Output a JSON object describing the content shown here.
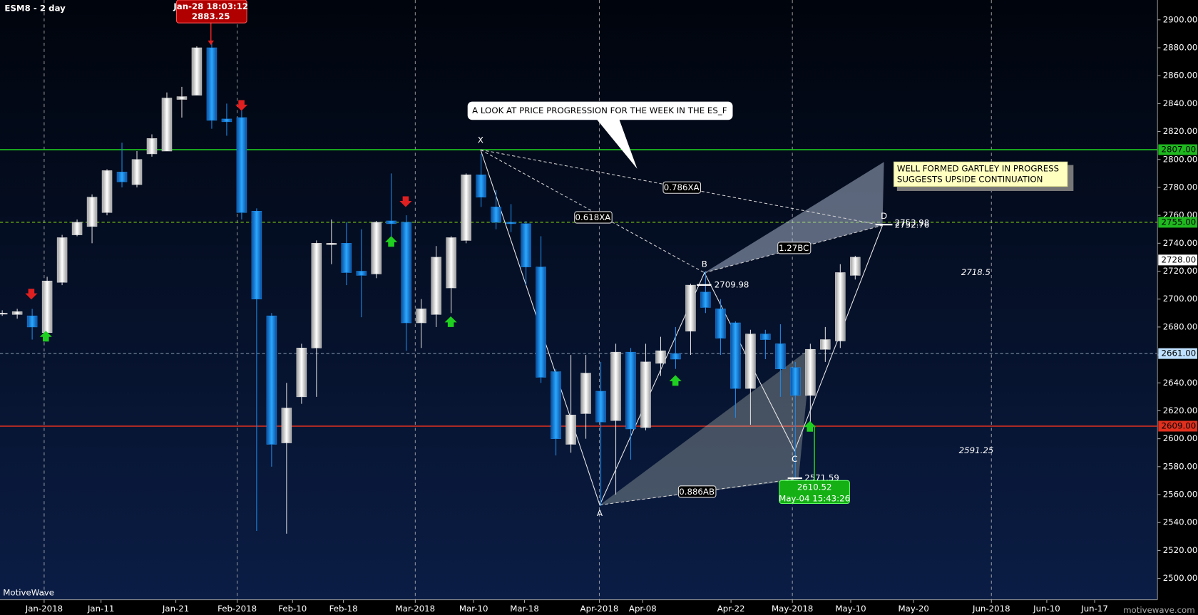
{
  "chart_data": {
    "type": "candlestick",
    "title": "ESM8 - 2 day",
    "open": [
      2690,
      2689,
      2688,
      2676,
      2712,
      2746,
      2752,
      2762,
      2791,
      2782,
      2804,
      2806,
      2843,
      2846,
      2880,
      2829,
      2830,
      2763,
      2688,
      2597,
      2630,
      2665,
      2739,
      2740,
      2720,
      2718,
      2756,
      2755,
      2683,
      2689,
      2708,
      2742,
      2789,
      2766,
      2755,
      2754,
      2723,
      2648,
      2596,
      2618,
      2634,
      2613,
      2662,
      2608,
      2654,
      2661,
      2677,
      2705,
      2693,
      2683,
      2636,
      2675,
      2668,
      2651,
      2631,
      2664,
      2670,
      2717
    ],
    "high": [
      2692,
      2693,
      2693,
      2716,
      2746,
      2757,
      2775,
      2793,
      2812,
      2806,
      2818,
      2848,
      2852,
      2881,
      2883.25,
      2840,
      2835,
      2765,
      2690,
      2640,
      2668,
      2742,
      2757,
      2755,
      2750,
      2756,
      2790,
      2760,
      2700,
      2738,
      2745,
      2790,
      2804,
      2778,
      2768,
      2756,
      2745,
      2650,
      2660,
      2660,
      2655,
      2668,
      2665,
      2668,
      2673,
      2680,
      2711,
      2720,
      2700,
      2684,
      2678,
      2678,
      2682,
      2655,
      2668,
      2680,
      2725,
      2731
    ],
    "low": [
      2688,
      2686,
      2671,
      2672,
      2710,
      2745,
      2740,
      2760,
      2780,
      2780,
      2802,
      2806,
      2830,
      2846,
      2822,
      2817,
      2757,
      2534,
      2580,
      2532,
      2625,
      2630,
      2725,
      2710,
      2687,
      2715,
      2745,
      2663,
      2665,
      2680,
      2690,
      2740,
      2766,
      2750,
      2748,
      2710,
      2640,
      2588,
      2590,
      2600,
      2552,
      2560,
      2585,
      2606,
      2645,
      2650,
      2660,
      2690,
      2660,
      2615,
      2610,
      2657,
      2630,
      2571.59,
      2610,
      2655,
      2665,
      2714
    ],
    "close": [
      2690,
      2691,
      2680,
      2713,
      2744,
      2755,
      2773,
      2792,
      2784,
      2800,
      2815,
      2844,
      2845,
      2880,
      2828,
      2827,
      2762,
      2700,
      2596,
      2622,
      2665,
      2740,
      2740,
      2719,
      2717,
      2755,
      2754,
      2683,
      2693,
      2730,
      2744,
      2789,
      2773,
      2755,
      2754,
      2723,
      2644,
      2600,
      2617,
      2647,
      2612,
      2662,
      2607,
      2655,
      2663,
      2657,
      2710,
      2694,
      2672,
      2636,
      2675,
      2671,
      2650,
      2631,
      2664,
      2671,
      2719,
      2730
    ],
    "up_color": "#d9d9d9",
    "down_color": "#1e88e5",
    "ylim": [
      2484.7,
      2914.2
    ],
    "yticks": [
      {
        "value": 2500,
        "label": "2500.00"
      },
      {
        "value": 2520,
        "label": "2520.00"
      },
      {
        "value": 2540,
        "label": "2540.00"
      },
      {
        "value": 2560,
        "label": "2560.00"
      },
      {
        "value": 2580,
        "label": "2580.00"
      },
      {
        "value": 2600,
        "label": "2600.00"
      },
      {
        "value": 2620,
        "label": "2620.00"
      },
      {
        "value": 2640,
        "label": "2640.00"
      },
      {
        "value": 2660,
        "label": "2660.00"
      },
      {
        "value": 2680,
        "label": "2680.00"
      },
      {
        "value": 2700,
        "label": "2700.00"
      },
      {
        "value": 2720,
        "label": "2720.00"
      },
      {
        "value": 2740,
        "label": "2740.00"
      },
      {
        "value": 2760,
        "label": "2760.00"
      },
      {
        "value": 2780,
        "label": "2780.00"
      },
      {
        "value": 2800,
        "label": "2800.00"
      },
      {
        "value": 2820,
        "label": "2820.00"
      },
      {
        "value": 2840,
        "label": "2840.00"
      },
      {
        "value": 2860,
        "label": "2860.00"
      },
      {
        "value": 2880,
        "label": "2880.00"
      },
      {
        "value": 2900,
        "label": "2900.00"
      }
    ],
    "xlim": [
      -0.15,
      77.2
    ],
    "xticks": [
      {
        "value": 2.8,
        "label": "Jan-2018"
      },
      {
        "value": 6.6,
        "label": "Jan-11"
      },
      {
        "value": 11.6,
        "label": "Jan-21"
      },
      {
        "value": 15.7,
        "label": "Feb-2018"
      },
      {
        "value": 19.4,
        "label": "Feb-10"
      },
      {
        "value": 22.8,
        "label": "Feb-18"
      },
      {
        "value": 27.6,
        "label": "Mar-2018"
      },
      {
        "value": 31.5,
        "label": "Mar-10"
      },
      {
        "value": 34.9,
        "label": "Mar-18"
      },
      {
        "value": 39.9,
        "label": "Apr-2018"
      },
      {
        "value": 42.8,
        "label": "Apr-08"
      },
      {
        "value": 48.7,
        "label": "Apr-22"
      },
      {
        "value": 52.8,
        "label": "May-2018"
      },
      {
        "value": 56.7,
        "label": "May-10"
      },
      {
        "value": 60.9,
        "label": "May-20"
      },
      {
        "value": 66.1,
        "label": "Jun-2018"
      },
      {
        "value": 69.8,
        "label": "Jun-10"
      },
      {
        "value": 73.0,
        "label": "Jun-17"
      }
    ],
    "levels": [
      {
        "value": 2807,
        "label": "2807.00",
        "color": "#1fd01f",
        "line": "solid",
        "label_fill": "#1fb81f",
        "label_text": "#000000"
      },
      {
        "value": 2755,
        "label": "2755.00",
        "color": "#7ccc10",
        "line": "dashed",
        "label_fill": "#1fb81f",
        "label_text": "#000000"
      },
      {
        "value": 2728,
        "label": "2728.00",
        "color": "#ffffff",
        "line": "none",
        "label_fill": "#ffffff",
        "label_text": "#000000"
      },
      {
        "value": 2661,
        "label": "2661.00",
        "color": "#8a9bb0",
        "line": "dashed",
        "label_fill": "#bfe0ff",
        "label_text": "#000000"
      },
      {
        "value": 2609,
        "label": "2609.00",
        "color": "#e0301e",
        "line": "solid",
        "label_fill": "#e0301e",
        "label_text": "#000000"
      }
    ],
    "annotations": {
      "high_time": "Jan-28 18:03:12",
      "high_price": 2883.25,
      "low_price": 2610.52,
      "low_time": "May-04 15:43:26",
      "callout": "A LOOK AT PRICE PROGRESSION FOR THE WEEK IN THE ES_F",
      "note": [
        "WELL FORMED GARTLEY IN PROGRESS",
        "SUGGESTS UPSIDE CONTINUATION"
      ],
      "points": [
        "X",
        "A",
        "B",
        "C",
        "D"
      ],
      "ratios": [
        "0.618XA",
        "0.786XA",
        "1.27BC",
        "0.886AB"
      ],
      "price_marks": [
        2709.98,
        2571.59,
        2753.98,
        2752.76,
        2718.5,
        2591.25
      ]
    }
  },
  "branding": {
    "left": "MotiveWave",
    "right": "motivewave.com"
  }
}
